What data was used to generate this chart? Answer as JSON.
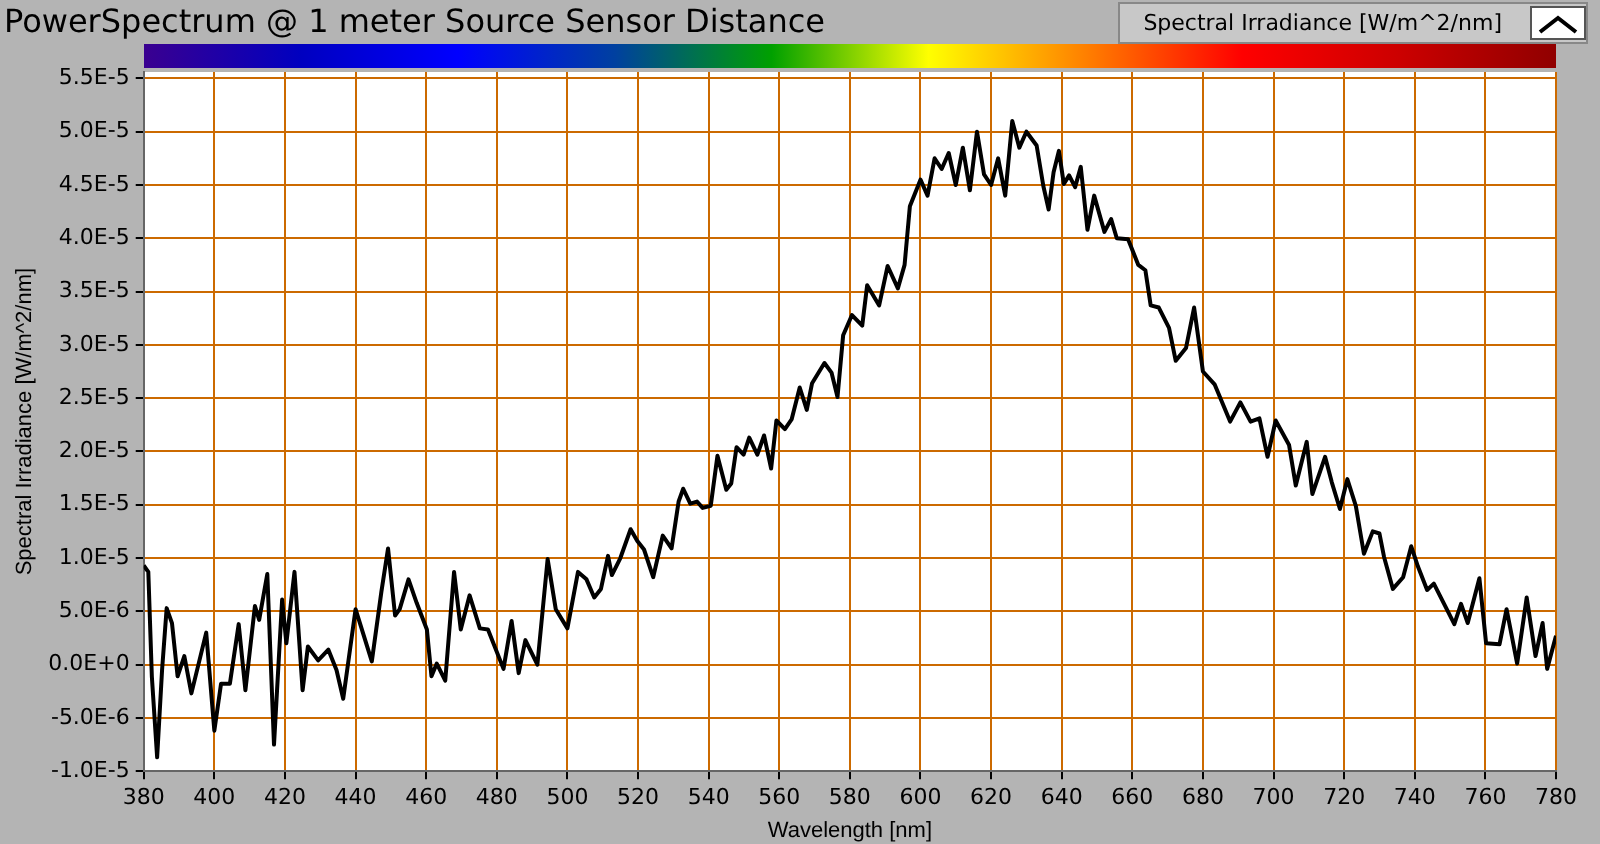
{
  "chart_data": {
    "type": "line",
    "title": "PowerSpectrum @ 1 meter Source Sensor Distance",
    "xlabel": "Wavelength [nm]",
    "ylabel": "Spectral Irradiance [W/m^2/nm]",
    "legend": "top right",
    "grid": true,
    "marker": "none",
    "line_style": "solid",
    "xlim": [
      380,
      780
    ],
    "xticks": [
      380,
      400,
      420,
      440,
      460,
      480,
      500,
      520,
      540,
      560,
      580,
      600,
      620,
      640,
      660,
      680,
      700,
      720,
      740,
      760,
      780
    ],
    "ylim": [
      -1e-05,
      5.56e-05
    ],
    "yticks": [
      {
        "value": -1e-05,
        "label": "-1.0E-5"
      },
      {
        "value": -5e-06,
        "label": "-5.0E-6"
      },
      {
        "value": 0,
        "label": "0.0E+0"
      },
      {
        "value": 5e-06,
        "label": "5.0E-6"
      },
      {
        "value": 1e-05,
        "label": "1.0E-5"
      },
      {
        "value": 1.5e-05,
        "label": "1.5E-5"
      },
      {
        "value": 2e-05,
        "label": "2.0E-5"
      },
      {
        "value": 2.5e-05,
        "label": "2.5E-5"
      },
      {
        "value": 3e-05,
        "label": "3.0E-5"
      },
      {
        "value": 3.5e-05,
        "label": "3.5E-5"
      },
      {
        "value": 4e-05,
        "label": "4.0E-5"
      },
      {
        "value": 4.5e-05,
        "label": "4.5E-5"
      },
      {
        "value": 5e-05,
        "label": "5.0E-5"
      },
      {
        "value": 5.5e-05,
        "label": "5.5E-5"
      }
    ],
    "series": [
      {
        "name": "Spectral Irradiance [W/m^2/nm]",
        "color": "#000000",
        "x": [
          380,
          381.3,
          382.3,
          383.8,
          385.2,
          386.5,
          388,
          389.6,
          391.5,
          393.5,
          397.7,
          400,
          401.9,
          404.4,
          406.9,
          408.8,
          411.5,
          412.7,
          415,
          416.9,
          419.2,
          420.4,
          422.7,
          425,
          426.5,
          429.4,
          432.3,
          434.6,
          436.5,
          440,
          444.6,
          447.3,
          449.2,
          451.2,
          452.5,
          455,
          457.3,
          460.2,
          461.5,
          463,
          465.4,
          467.9,
          469.8,
          472.3,
          475.2,
          477.5,
          481.9,
          484.2,
          486.2,
          488.1,
          491.5,
          494.4,
          496.7,
          500,
          503,
          505.4,
          507.6,
          509.5,
          511.5,
          512.6,
          515,
          517.9,
          519.8,
          521.7,
          524.3,
          527,
          529.5,
          531.5,
          532.8,
          534.8,
          536.7,
          538.3,
          540.6,
          542.5,
          545,
          546.4,
          547.9,
          549.9,
          551.5,
          553.8,
          555.7,
          557.7,
          559.2,
          561.6,
          563.5,
          565.8,
          567.8,
          569.3,
          572.8,
          574.8,
          576.5,
          578.1,
          580.6,
          583.5,
          584.9,
          588.3,
          590.7,
          593.6,
          595.5,
          597,
          600,
          602,
          604,
          606,
          608,
          610,
          612,
          614,
          616,
          618,
          620,
          622,
          624,
          626,
          628,
          630,
          632.9,
          634.8,
          636.3,
          637.7,
          639.2,
          640.6,
          642.1,
          643.8,
          645.4,
          647.3,
          649.2,
          652.1,
          654,
          655.6,
          658.8,
          661.7,
          663.7,
          665.2,
          667.5,
          670.4,
          672.3,
          675.2,
          677.5,
          680,
          683.3,
          687.7,
          690.6,
          693.5,
          696,
          698.3,
          700.6,
          704.4,
          706.3,
          709.4,
          711,
          714.6,
          716.5,
          718.8,
          720.9,
          723.3,
          725.6,
          728.1,
          730,
          731.3,
          733.8,
          736.7,
          739,
          740.9,
          743.5,
          745.4,
          748.3,
          751.2,
          753.1,
          755,
          758.3,
          760.2,
          764,
          766,
          769,
          771.7,
          774.2,
          776.2,
          777.5,
          780
        ],
        "values": [
          9.3e-06,
          8.7e-06,
          -1.1e-06,
          -8.7e-06,
          -5e-07,
          5.3e-06,
          3.9e-06,
          -1.1e-06,
          8e-07,
          -2.7e-06,
          3e-06,
          -6.2e-06,
          -1.8e-06,
          -1.8e-06,
          3.8e-06,
          -2.4e-06,
          5.5e-06,
          4.2e-06,
          8.5e-06,
          -7.5e-06,
          6.1e-06,
          2e-06,
          8.7e-06,
          -2.4e-06,
          1.7e-06,
          4e-07,
          1.4e-06,
          -5e-07,
          -3.2e-06,
          5.2e-06,
          3e-07,
          6.8e-06,
          1.09e-05,
          4.6e-06,
          5.2e-06,
          8e-06,
          5.8e-06,
          3.3e-06,
          -1.1e-06,
          1e-07,
          -1.5e-06,
          8.7e-06,
          3.3e-06,
          6.5e-06,
          3.4e-06,
          3.3e-06,
          -4e-07,
          4.1e-06,
          -8e-07,
          2.3e-06,
          0,
          9.9e-06,
          5.2e-06,
          3.4e-06,
          8.7e-06,
          8e-06,
          6.3e-06,
          7.1e-06,
          1.02e-05,
          8.4e-06,
          1e-05,
          1.27e-05,
          1.16e-05,
          1.08e-05,
          8.2e-06,
          1.21e-05,
          1.09e-05,
          1.53e-05,
          1.65e-05,
          1.51e-05,
          1.53e-05,
          1.47e-05,
          1.49e-05,
          1.96e-05,
          1.64e-05,
          1.7e-05,
          2.04e-05,
          1.97e-05,
          2.13e-05,
          1.97e-05,
          2.15e-05,
          1.84e-05,
          2.29e-05,
          2.21e-05,
          2.3e-05,
          2.6e-05,
          2.39e-05,
          2.64e-05,
          2.83e-05,
          2.74e-05,
          2.51e-05,
          3.09e-05,
          3.28e-05,
          3.18e-05,
          3.56e-05,
          3.37e-05,
          3.74e-05,
          3.53e-05,
          3.75e-05,
          4.3e-05,
          4.55e-05,
          4.4e-05,
          4.75e-05,
          4.65e-05,
          4.8e-05,
          4.5e-05,
          4.85e-05,
          4.45e-05,
          5e-05,
          4.6e-05,
          4.5e-05,
          4.75e-05,
          4.4e-05,
          5.1e-05,
          4.85e-05,
          5e-05,
          4.87e-05,
          4.49e-05,
          4.27e-05,
          4.62e-05,
          4.82e-05,
          4.51e-05,
          4.59e-05,
          4.48e-05,
          4.67e-05,
          4.08e-05,
          4.4e-05,
          4.06e-05,
          4.18e-05,
          4e-05,
          3.99e-05,
          3.75e-05,
          3.7e-05,
          3.37e-05,
          3.35e-05,
          3.16e-05,
          2.85e-05,
          2.97e-05,
          3.35e-05,
          2.75e-05,
          2.63e-05,
          2.28e-05,
          2.46e-05,
          2.28e-05,
          2.31e-05,
          1.95e-05,
          2.29e-05,
          2.06e-05,
          1.68e-05,
          2.09e-05,
          1.6e-05,
          1.95e-05,
          1.71e-05,
          1.46e-05,
          1.74e-05,
          1.49e-05,
          1.04e-05,
          1.25e-05,
          1.23e-05,
          1.01e-05,
          7.1e-06,
          8.2e-06,
          1.11e-05,
          9.2e-06,
          7e-06,
          7.6e-06,
          5.7e-06,
          3.8e-06,
          5.7e-06,
          3.9e-06,
          8.1e-06,
          2e-06,
          1.9e-06,
          5.2e-06,
          1e-07,
          6.3e-06,
          8e-07,
          3.9e-06,
          -4e-07,
          2.7e-06
        ]
      }
    ]
  }
}
